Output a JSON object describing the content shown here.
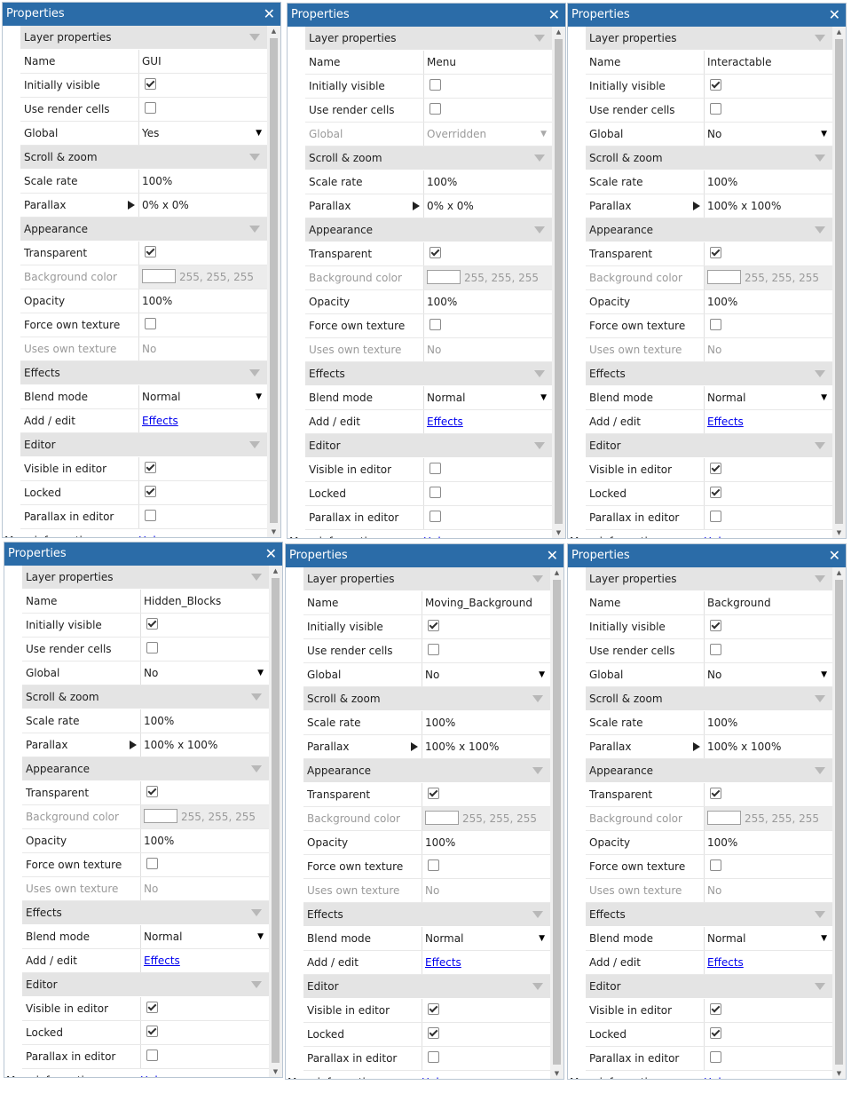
{
  "panels": [
    {
      "title": "Properties",
      "close": "✕",
      "sections": {
        "layer": "Layer properties",
        "scroll": "Scroll & zoom",
        "appearance": "Appearance",
        "effects": "Effects",
        "editor": "Editor"
      },
      "labels": {
        "name": "Name",
        "initially_visible": "Initially visible",
        "use_render_cells": "Use render cells",
        "global": "Global",
        "scale_rate": "Scale rate",
        "parallax": "Parallax",
        "transparent": "Transparent",
        "background_color": "Background color",
        "opacity": "Opacity",
        "force_own_texture": "Force own texture",
        "uses_own_texture": "Uses own texture",
        "blend_mode": "Blend mode",
        "add_edit": "Add / edit",
        "visible_in_editor": "Visible in editor",
        "locked": "Locked",
        "parallax_in_editor": "Parallax in editor",
        "more_information": "More information"
      },
      "values": {
        "name": "GUI",
        "initially_visible": true,
        "use_render_cells": false,
        "global": "Yes",
        "global_disabled": false,
        "scale_rate": "100%",
        "parallax": "0% x 0%",
        "transparent": true,
        "background_color": "255, 255, 255",
        "opacity": "100%",
        "force_own_texture": false,
        "uses_own_texture": "No",
        "blend_mode": "Normal",
        "effects_link": "Effects",
        "visible_in_editor": true,
        "locked": true,
        "parallax_in_editor": false,
        "help_link": "Help"
      }
    },
    {
      "title": "Properties",
      "close": "✕",
      "sections": {
        "layer": "Layer properties",
        "scroll": "Scroll & zoom",
        "appearance": "Appearance",
        "effects": "Effects",
        "editor": "Editor"
      },
      "labels": {
        "name": "Name",
        "initially_visible": "Initially visible",
        "use_render_cells": "Use render cells",
        "global": "Global",
        "scale_rate": "Scale rate",
        "parallax": "Parallax",
        "transparent": "Transparent",
        "background_color": "Background color",
        "opacity": "Opacity",
        "force_own_texture": "Force own texture",
        "uses_own_texture": "Uses own texture",
        "blend_mode": "Blend mode",
        "add_edit": "Add / edit",
        "visible_in_editor": "Visible in editor",
        "locked": "Locked",
        "parallax_in_editor": "Parallax in editor",
        "more_information": "More information"
      },
      "values": {
        "name": "Menu",
        "initially_visible": false,
        "use_render_cells": false,
        "global": "Overridden",
        "global_disabled": true,
        "scale_rate": "100%",
        "parallax": "0% x 0%",
        "transparent": true,
        "background_color": "255, 255, 255",
        "opacity": "100%",
        "force_own_texture": false,
        "uses_own_texture": "No",
        "blend_mode": "Normal",
        "effects_link": "Effects",
        "visible_in_editor": false,
        "locked": false,
        "parallax_in_editor": false,
        "help_link": "Help"
      }
    },
    {
      "title": "Properties",
      "close": "✕",
      "sections": {
        "layer": "Layer properties",
        "scroll": "Scroll & zoom",
        "appearance": "Appearance",
        "effects": "Effects",
        "editor": "Editor"
      },
      "labels": {
        "name": "Name",
        "initially_visible": "Initially visible",
        "use_render_cells": "Use render cells",
        "global": "Global",
        "scale_rate": "Scale rate",
        "parallax": "Parallax",
        "transparent": "Transparent",
        "background_color": "Background color",
        "opacity": "Opacity",
        "force_own_texture": "Force own texture",
        "uses_own_texture": "Uses own texture",
        "blend_mode": "Blend mode",
        "add_edit": "Add / edit",
        "visible_in_editor": "Visible in editor",
        "locked": "Locked",
        "parallax_in_editor": "Parallax in editor",
        "more_information": "More information"
      },
      "values": {
        "name": "Interactable",
        "initially_visible": true,
        "use_render_cells": false,
        "global": "No",
        "global_disabled": false,
        "scale_rate": "100%",
        "parallax": "100% x 100%",
        "transparent": true,
        "background_color": "255, 255, 255",
        "opacity": "100%",
        "force_own_texture": false,
        "uses_own_texture": "No",
        "blend_mode": "Normal",
        "effects_link": "Effects",
        "visible_in_editor": true,
        "locked": true,
        "parallax_in_editor": false,
        "help_link": "Help"
      }
    },
    {
      "title": "Properties",
      "close": "✕",
      "sections": {
        "layer": "Layer properties",
        "scroll": "Scroll & zoom",
        "appearance": "Appearance",
        "effects": "Effects",
        "editor": "Editor"
      },
      "labels": {
        "name": "Name",
        "initially_visible": "Initially visible",
        "use_render_cells": "Use render cells",
        "global": "Global",
        "scale_rate": "Scale rate",
        "parallax": "Parallax",
        "transparent": "Transparent",
        "background_color": "Background color",
        "opacity": "Opacity",
        "force_own_texture": "Force own texture",
        "uses_own_texture": "Uses own texture",
        "blend_mode": "Blend mode",
        "add_edit": "Add / edit",
        "visible_in_editor": "Visible in editor",
        "locked": "Locked",
        "parallax_in_editor": "Parallax in editor",
        "more_information": "More information"
      },
      "values": {
        "name": "Hidden_Blocks",
        "initially_visible": true,
        "use_render_cells": false,
        "global": "No",
        "global_disabled": false,
        "scale_rate": "100%",
        "parallax": "100% x 100%",
        "transparent": true,
        "background_color": "255, 255, 255",
        "opacity": "100%",
        "force_own_texture": false,
        "uses_own_texture": "No",
        "blend_mode": "Normal",
        "effects_link": "Effects",
        "visible_in_editor": true,
        "locked": true,
        "parallax_in_editor": false,
        "help_link": "Help"
      }
    },
    {
      "title": "Properties",
      "close": "✕",
      "sections": {
        "layer": "Layer properties",
        "scroll": "Scroll & zoom",
        "appearance": "Appearance",
        "effects": "Effects",
        "editor": "Editor"
      },
      "labels": {
        "name": "Name",
        "initially_visible": "Initially visible",
        "use_render_cells": "Use render cells",
        "global": "Global",
        "scale_rate": "Scale rate",
        "parallax": "Parallax",
        "transparent": "Transparent",
        "background_color": "Background color",
        "opacity": "Opacity",
        "force_own_texture": "Force own texture",
        "uses_own_texture": "Uses own texture",
        "blend_mode": "Blend mode",
        "add_edit": "Add / edit",
        "visible_in_editor": "Visible in editor",
        "locked": "Locked",
        "parallax_in_editor": "Parallax in editor",
        "more_information": "More information"
      },
      "values": {
        "name": "Moving_Background",
        "initially_visible": true,
        "use_render_cells": false,
        "global": "No",
        "global_disabled": false,
        "scale_rate": "100%",
        "parallax": "100% x 100%",
        "transparent": true,
        "background_color": "255, 255, 255",
        "opacity": "100%",
        "force_own_texture": false,
        "uses_own_texture": "No",
        "blend_mode": "Normal",
        "effects_link": "Effects",
        "visible_in_editor": true,
        "locked": true,
        "parallax_in_editor": false,
        "help_link": "Help"
      }
    },
    {
      "title": "Properties",
      "close": "✕",
      "sections": {
        "layer": "Layer properties",
        "scroll": "Scroll & zoom",
        "appearance": "Appearance",
        "effects": "Effects",
        "editor": "Editor"
      },
      "labels": {
        "name": "Name",
        "initially_visible": "Initially visible",
        "use_render_cells": "Use render cells",
        "global": "Global",
        "scale_rate": "Scale rate",
        "parallax": "Parallax",
        "transparent": "Transparent",
        "background_color": "Background color",
        "opacity": "Opacity",
        "force_own_texture": "Force own texture",
        "uses_own_texture": "Uses own texture",
        "blend_mode": "Blend mode",
        "add_edit": "Add / edit",
        "visible_in_editor": "Visible in editor",
        "locked": "Locked",
        "parallax_in_editor": "Parallax in editor",
        "more_information": "More information"
      },
      "values": {
        "name": "Background",
        "initially_visible": true,
        "use_render_cells": false,
        "global": "No",
        "global_disabled": false,
        "scale_rate": "100%",
        "parallax": "100% x 100%",
        "transparent": true,
        "background_color": "255, 255, 255",
        "opacity": "100%",
        "force_own_texture": false,
        "uses_own_texture": "No",
        "blend_mode": "Normal",
        "effects_link": "Effects",
        "visible_in_editor": true,
        "locked": true,
        "parallax_in_editor": false,
        "help_link": "Help"
      }
    }
  ]
}
